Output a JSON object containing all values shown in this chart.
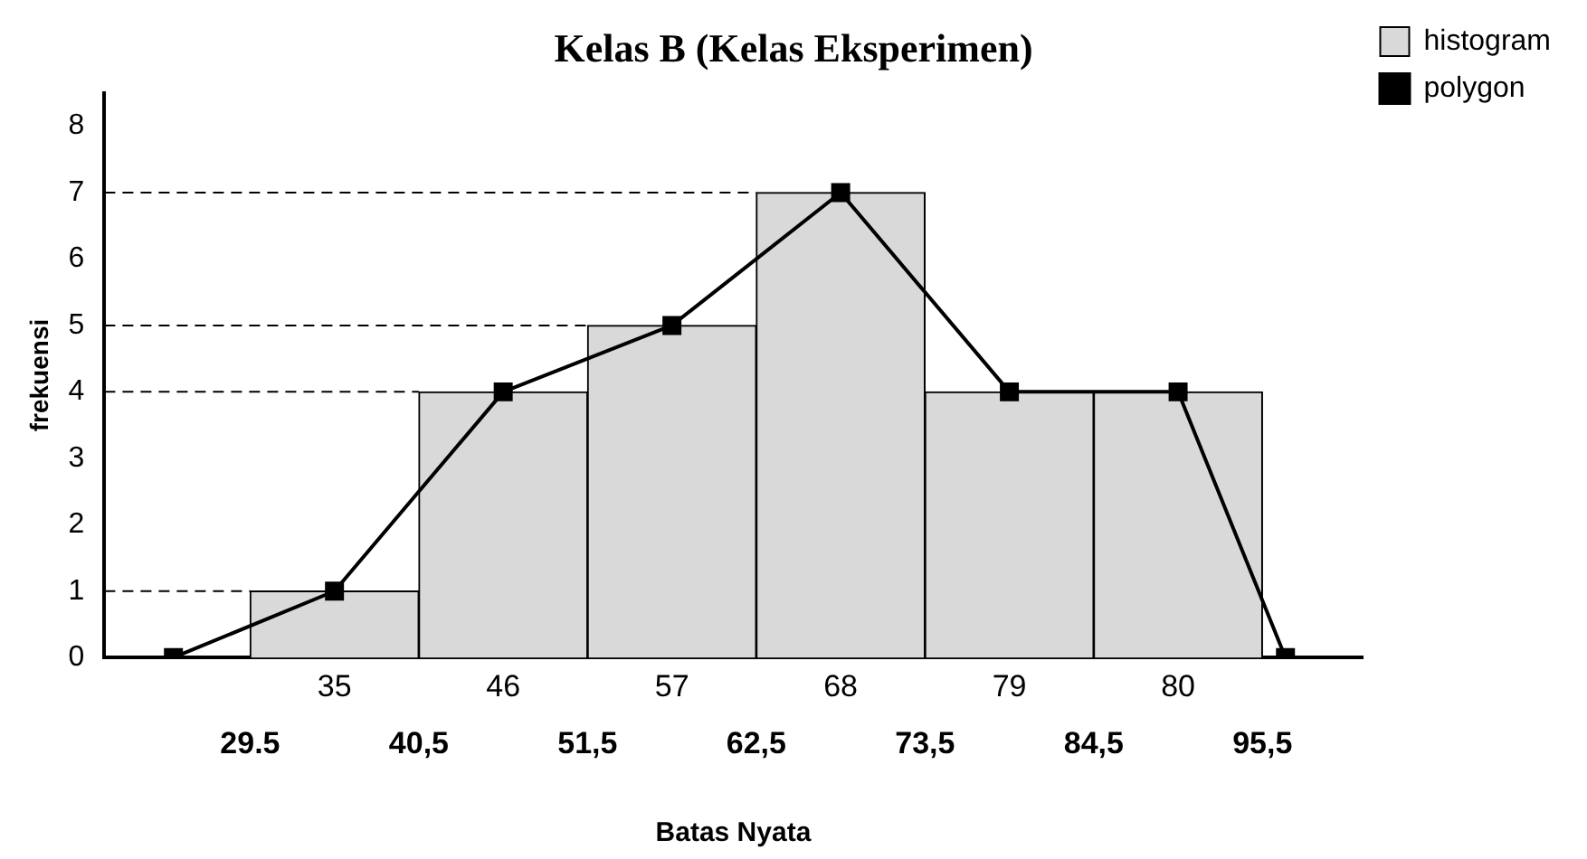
{
  "chart_data": {
    "type": "histogram",
    "title": "Kelas B (Kelas Eksperimen)",
    "xlabel": "Batas Nyata",
    "ylabel": "frekuensi",
    "bins": [
      29.5,
      40.5,
      51.5,
      62.5,
      73.5,
      84.5,
      95.5
    ],
    "series": [
      {
        "name": "histogram",
        "color": "#d9d9d9",
        "values": [
          1,
          4,
          5,
          7,
          4,
          4
        ]
      },
      {
        "name": "polygon",
        "type": "line",
        "color": "#000000",
        "x": [
          24.5,
          35,
          46,
          57,
          68,
          79,
          90,
          97
        ],
        "values": [
          0,
          1,
          4,
          5,
          7,
          4,
          4,
          0
        ]
      }
    ],
    "marker": "square",
    "line_style": "solid",
    "xlim": [
      20,
      102
    ],
    "ylim": [
      0,
      8.5
    ],
    "xticks": [
      {
        "value": 29.5,
        "label": "29.5"
      },
      {
        "value": 40.5,
        "label": "40,5"
      },
      {
        "value": 51.5,
        "label": "51,5"
      },
      {
        "value": 62.5,
        "label": "62,5"
      },
      {
        "value": 73.5,
        "label": "73,5"
      },
      {
        "value": 84.5,
        "label": "84,5"
      },
      {
        "value": 95.5,
        "label": "95,5"
      }
    ],
    "yticks": [
      0,
      1,
      2,
      3,
      4,
      5,
      6,
      7,
      8
    ],
    "annotations": [
      "35",
      "46",
      "57",
      "68",
      "79",
      "80"
    ],
    "ref_lines": [
      {
        "axis": "y",
        "value": 1,
        "line_style": "dashed"
      },
      {
        "axis": "y",
        "value": 4,
        "line_style": "dashed"
      },
      {
        "axis": "y",
        "value": 5,
        "line_style": "dashed"
      },
      {
        "axis": "y",
        "value": 7,
        "line_style": "dashed"
      }
    ],
    "grid": false,
    "legend": "right"
  }
}
